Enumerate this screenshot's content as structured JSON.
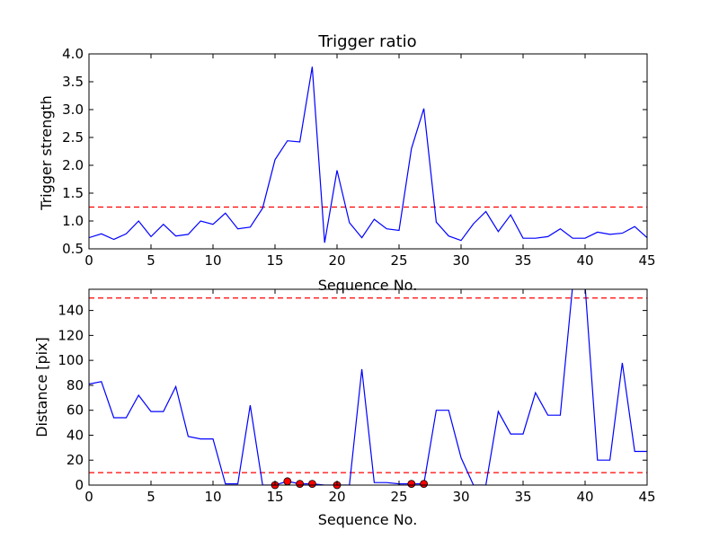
{
  "chart_data": [
    {
      "type": "line",
      "title": "Trigger ratio",
      "xlabel": "Sequence No.",
      "ylabel": "Trigger strength",
      "xlim": [
        0,
        45
      ],
      "ylim": [
        0.5,
        4.0
      ],
      "xticks": [
        "0",
        "5",
        "10",
        "15",
        "20",
        "25",
        "30",
        "35",
        "40",
        "45"
      ],
      "yticks": [
        "0.5",
        "1.0",
        "1.5",
        "2.0",
        "2.5",
        "3.0",
        "3.5",
        "4.0"
      ],
      "grid": false,
      "series": [
        {
          "color": "#0000ff",
          "x": [
            0,
            1,
            2,
            3,
            4,
            5,
            6,
            7,
            8,
            9,
            10,
            11,
            12,
            13,
            14,
            15,
            16,
            17,
            18,
            19,
            20,
            21,
            22,
            23,
            24,
            25,
            26,
            27,
            28,
            29,
            30,
            31,
            32,
            33,
            34,
            35,
            36,
            37,
            38,
            39,
            40,
            41,
            42,
            43,
            44,
            45
          ],
          "y": [
            0.7,
            0.77,
            0.67,
            0.77,
            1.0,
            0.72,
            0.94,
            0.73,
            0.76,
            1.0,
            0.94,
            1.14,
            0.86,
            0.89,
            1.23,
            2.1,
            2.44,
            2.42,
            3.77,
            0.61,
            1.91,
            0.97,
            0.7,
            1.03,
            0.86,
            0.83,
            2.3,
            3.02,
            0.98,
            0.73,
            0.65,
            0.95,
            1.17,
            0.81,
            1.11,
            0.69,
            0.69,
            0.72,
            0.86,
            0.69,
            0.69,
            0.8,
            0.76,
            0.78,
            0.9,
            0.7
          ]
        }
      ],
      "hlines": [
        {
          "y": 1.25,
          "color": "#ff0000",
          "style": "dashed"
        }
      ]
    },
    {
      "type": "line",
      "title": "",
      "xlabel": "Sequence No.",
      "ylabel": "Distance [pix]",
      "xlim": [
        0,
        45
      ],
      "ylim": [
        0,
        157
      ],
      "xticks": [
        "0",
        "5",
        "10",
        "15",
        "20",
        "25",
        "30",
        "35",
        "40",
        "45"
      ],
      "yticks": [
        "0",
        "20",
        "40",
        "60",
        "80",
        "100",
        "120",
        "140"
      ],
      "grid": false,
      "series": [
        {
          "color": "#0000ff",
          "x": [
            0,
            1,
            2,
            3,
            4,
            5,
            6,
            7,
            8,
            9,
            10,
            11,
            12,
            13,
            14,
            15,
            16,
            17,
            18,
            19,
            20,
            21,
            22,
            23,
            24,
            25,
            26,
            27,
            28,
            29,
            30,
            31,
            32,
            33,
            34,
            35,
            36,
            37,
            38,
            39,
            40,
            41,
            42,
            43,
            44,
            45
          ],
          "y": [
            81,
            83,
            54,
            54,
            72,
            59,
            59,
            79,
            39,
            37,
            37,
            1,
            1,
            64,
            0,
            0,
            3,
            1,
            1,
            0,
            0,
            0,
            93,
            2,
            2,
            1,
            1,
            1,
            60,
            60,
            22,
            0,
            0,
            59,
            41,
            41,
            74,
            56,
            56,
            160,
            160,
            20,
            20,
            98,
            27,
            27
          ]
        }
      ],
      "markers": {
        "color": "#ff0000",
        "x": [
          15,
          16,
          17,
          18,
          20,
          26,
          27
        ],
        "y": [
          0,
          3,
          1,
          1,
          0,
          1,
          1
        ]
      },
      "hlines": [
        {
          "y": 150,
          "color": "#ff0000",
          "style": "dashed"
        },
        {
          "y": 10,
          "color": "#ff0000",
          "style": "dashed"
        }
      ]
    }
  ]
}
